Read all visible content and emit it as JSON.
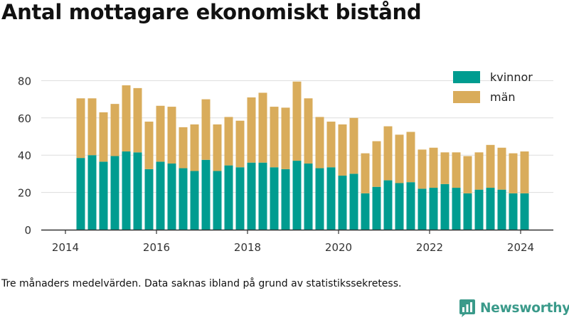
{
  "title": "Antal mottagare ekonomiskt bistånd",
  "footnote": "Tre månaders medelvärden. Data saknas ibland på grund av statistikssekretess.",
  "logo_text": "Newsworthy",
  "colors": {
    "kvinnor": "#009c90",
    "man": "#d9ac5b",
    "grid": "#dddddd",
    "axis": "#333333",
    "logo": "#3a9a8a"
  },
  "chart_data": {
    "type": "bar",
    "stacked": true,
    "x_ticks": [
      "2014",
      "2016",
      "2018",
      "2020",
      "2022",
      "2024"
    ],
    "y_ticks": [
      0,
      20,
      40,
      60,
      80
    ],
    "ylim": [
      0,
      85
    ],
    "grid": true,
    "legend_position": "top-right",
    "series": [
      {
        "name": "kvinnor",
        "values": [
          38.5,
          40,
          36.5,
          39.5,
          42,
          41.5,
          32.5,
          36.5,
          35.5,
          33,
          31.5,
          37.5,
          31.5,
          34.5,
          33.5,
          36,
          36,
          33.5,
          32.5,
          37,
          35.5,
          33,
          33.5,
          29,
          30,
          19.5,
          23,
          26.5,
          25,
          25.5,
          22,
          22.5,
          24.5,
          22.5,
          19.5,
          21.5,
          22.5,
          21.5,
          19.5,
          19.5
        ]
      },
      {
        "name": "män",
        "values": [
          32,
          30.5,
          26.5,
          28,
          35.5,
          34.5,
          25.5,
          30,
          30.5,
          22,
          25,
          32.5,
          25,
          26,
          25,
          35,
          37.5,
          32.5,
          33,
          42.5,
          35,
          27.5,
          24.5,
          27.5,
          30,
          21.5,
          24.5,
          29,
          26,
          27,
          21,
          21.5,
          17,
          19,
          20,
          20,
          23,
          22.5,
          21.5,
          22.5
        ]
      }
    ]
  }
}
